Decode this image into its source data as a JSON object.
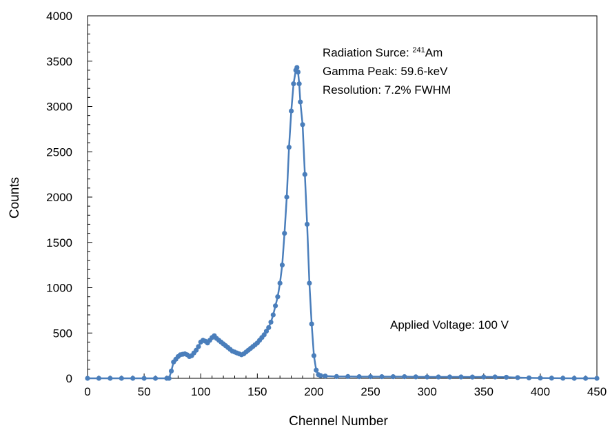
{
  "chart_data": {
    "type": "line",
    "title": "",
    "xlabel": "Chennel Number",
    "ylabel": "Counts",
    "xlim": [
      0,
      450
    ],
    "ylim": [
      0,
      4000
    ],
    "xticks": [
      0,
      50,
      100,
      150,
      200,
      250,
      300,
      350,
      400,
      450
    ],
    "yticks": [
      0,
      500,
      1000,
      1500,
      2000,
      2500,
      3000,
      3500,
      4000
    ],
    "grid": false,
    "legend": "none",
    "series_color": "#4a7ebb",
    "annotations": {
      "radiation_source_prefix": "Radiation Surce: ",
      "radiation_source_mass": "241",
      "radiation_source_element": "Am",
      "gamma_peak": "Gamma Peak: 59.6-keV",
      "resolution": "Resolution: 7.2% FWHM",
      "voltage": "Applied Voltage: 100 V"
    },
    "series": [
      {
        "x": [
          0,
          10,
          20,
          30,
          40,
          50,
          60,
          70,
          72,
          74,
          76,
          78,
          80,
          82,
          84,
          86,
          88,
          90,
          92,
          94,
          96,
          98,
          100,
          102,
          104,
          106,
          108,
          110,
          112,
          114,
          116,
          118,
          120,
          122,
          124,
          126,
          128,
          130,
          132,
          134,
          136,
          138,
          140,
          142,
          144,
          146,
          148,
          150,
          152,
          154,
          156,
          158,
          160,
          162,
          164,
          166,
          168,
          170,
          172,
          174,
          176,
          178,
          180,
          182,
          184,
          185,
          186,
          187,
          188,
          190,
          192,
          194,
          196,
          198,
          200,
          202,
          204,
          206,
          210,
          220,
          230,
          240,
          250,
          260,
          270,
          280,
          290,
          300,
          310,
          320,
          330,
          340,
          350,
          360,
          370,
          380,
          390,
          400,
          410,
          420,
          430,
          440,
          450
        ],
        "values": [
          0,
          0,
          0,
          0,
          0,
          0,
          0,
          0,
          0,
          80,
          180,
          210,
          240,
          260,
          265,
          270,
          260,
          240,
          250,
          280,
          310,
          350,
          400,
          420,
          410,
          390,
          420,
          450,
          470,
          440,
          420,
          400,
          380,
          360,
          340,
          320,
          300,
          290,
          280,
          270,
          260,
          270,
          290,
          310,
          330,
          350,
          370,
          390,
          420,
          450,
          480,
          520,
          560,
          620,
          700,
          800,
          900,
          1050,
          1250,
          1600,
          2000,
          2550,
          2950,
          3250,
          3400,
          3430,
          3380,
          3250,
          3050,
          2800,
          2250,
          1700,
          1050,
          600,
          250,
          90,
          40,
          30,
          25,
          20,
          20,
          18,
          18,
          18,
          18,
          18,
          16,
          15,
          15,
          15,
          15,
          14,
          15,
          15,
          12,
          8,
          5,
          3,
          2,
          1,
          0,
          0,
          0
        ]
      }
    ]
  }
}
